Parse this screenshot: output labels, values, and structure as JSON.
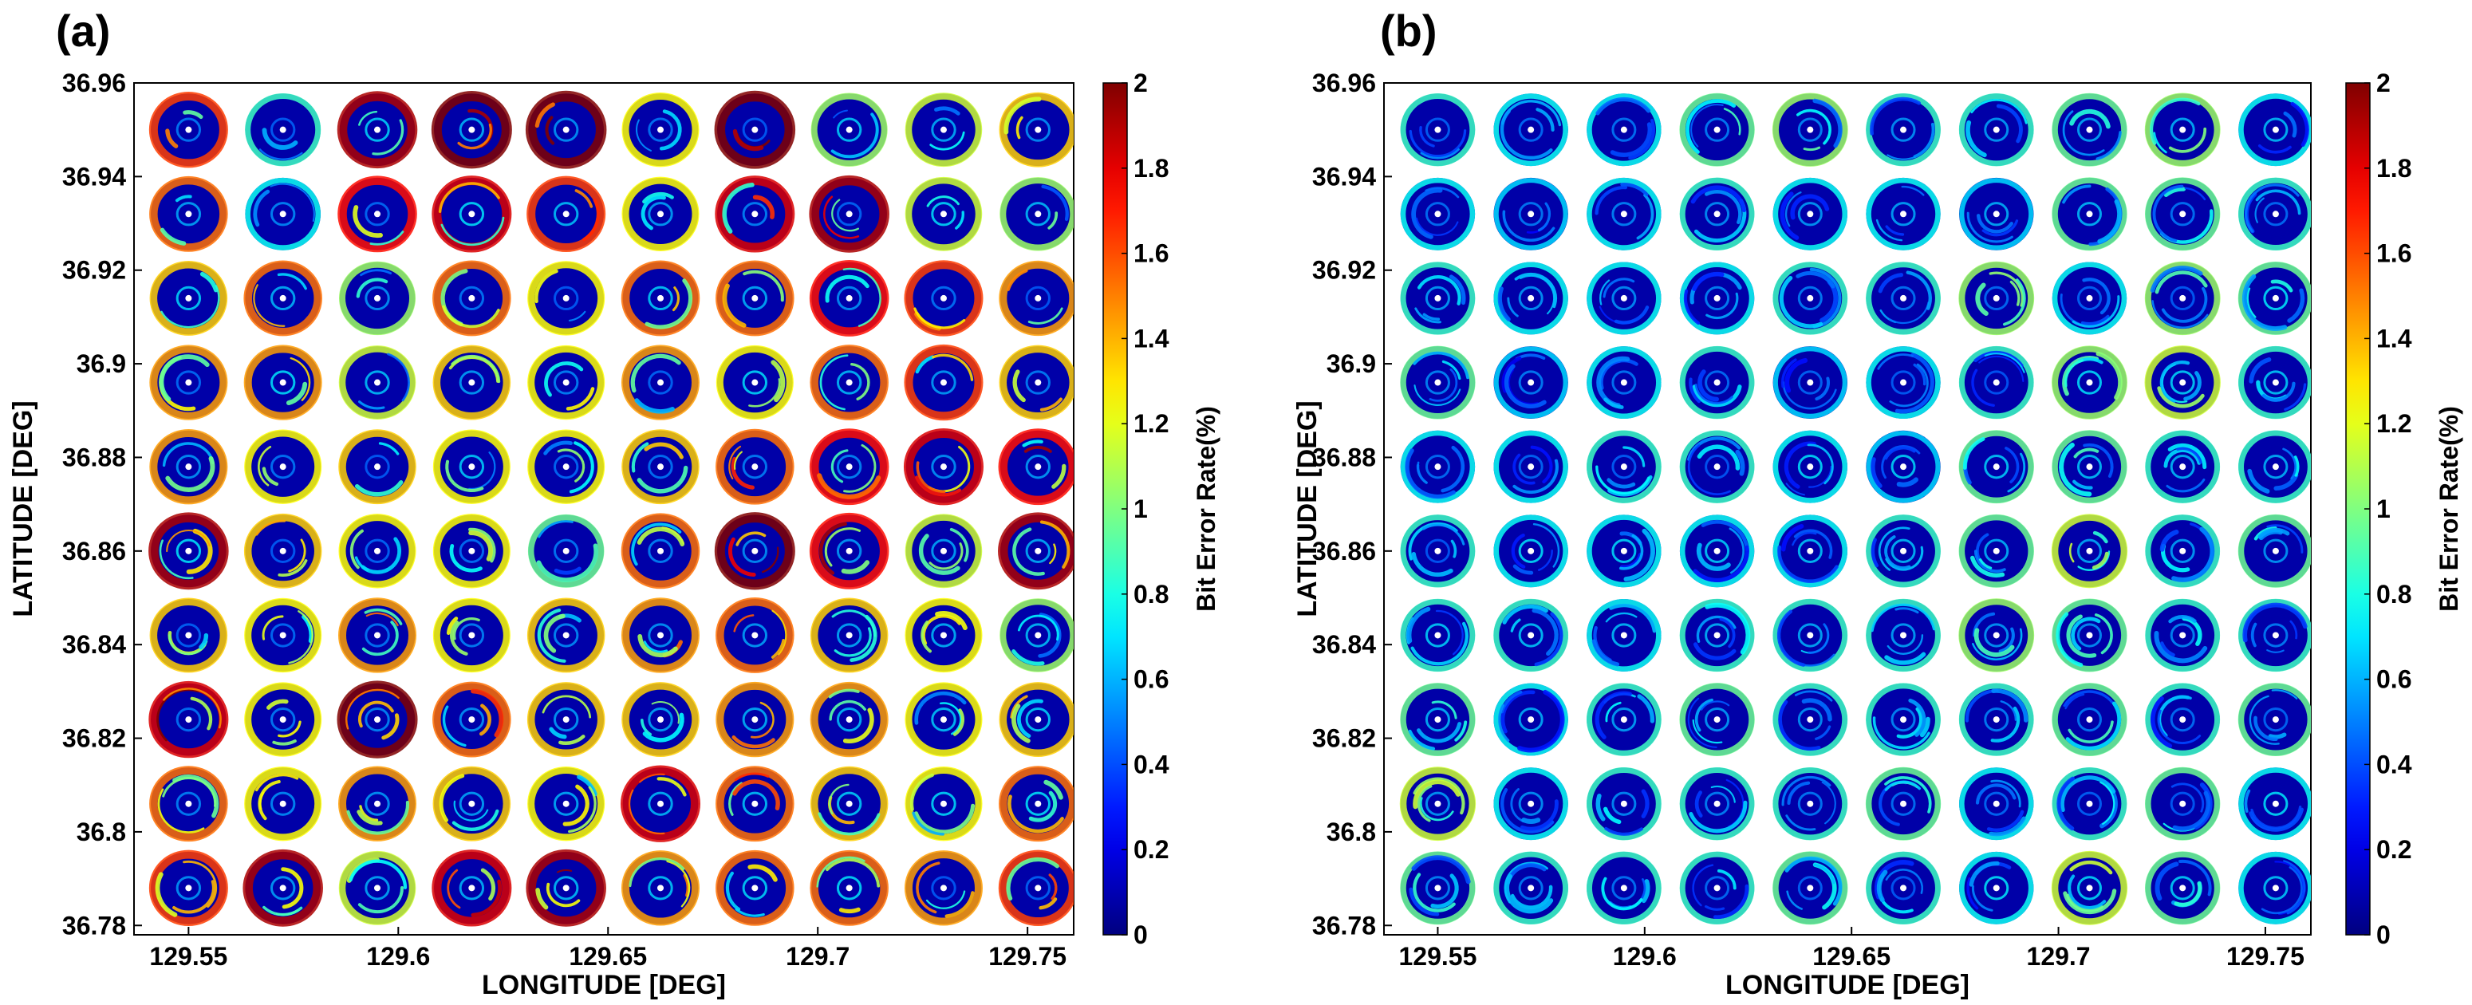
{
  "chart_data": [
    {
      "type": "heatmap",
      "panel_label": "(a)",
      "xlabel": "LONGITUDE [DEG]",
      "ylabel": "LATITUDE [DEG]",
      "xlim": [
        129.537,
        129.761
      ],
      "ylim": [
        36.778,
        36.96
      ],
      "xticks": [
        129.55,
        129.6,
        129.65,
        129.7,
        129.75
      ],
      "xtick_labels": [
        "129.55",
        "129.6",
        "129.65",
        "129.7",
        "129.75"
      ],
      "yticks": [
        36.78,
        36.8,
        36.82,
        36.84,
        36.86,
        36.88,
        36.9,
        36.92,
        36.94,
        36.96
      ],
      "ytick_labels": [
        "36.78",
        "36.8",
        "36.82",
        "36.84",
        "36.86",
        "36.88",
        "36.9",
        "36.92",
        "36.94",
        "36.96"
      ],
      "grid_longitudes": [
        129.55,
        129.5725,
        129.595,
        129.6175,
        129.64,
        129.6625,
        129.685,
        129.7075,
        129.73,
        129.7525
      ],
      "grid_latitudes": [
        36.95,
        36.932,
        36.914,
        36.896,
        36.878,
        36.86,
        36.842,
        36.824,
        36.806,
        36.788
      ],
      "cell_mean_ber_percent": [
        [
          1.4,
          0.6,
          1.7,
          1.8,
          1.9,
          1.0,
          1.9,
          0.8,
          0.9,
          1.1
        ],
        [
          1.3,
          0.5,
          1.5,
          1.6,
          1.4,
          1.0,
          1.6,
          1.7,
          0.9,
          0.8
        ],
        [
          1.1,
          1.3,
          0.8,
          1.3,
          1.0,
          1.3,
          1.3,
          1.5,
          1.4,
          1.2
        ],
        [
          1.2,
          1.2,
          0.9,
          1.1,
          1.0,
          1.2,
          1.0,
          1.3,
          1.4,
          1.1
        ],
        [
          1.2,
          1.0,
          1.1,
          1.0,
          1.0,
          1.1,
          1.3,
          1.5,
          1.6,
          1.5
        ],
        [
          1.7,
          1.1,
          1.0,
          1.0,
          0.7,
          1.3,
          1.8,
          1.5,
          0.9,
          1.7
        ],
        [
          1.1,
          1.0,
          1.2,
          1.0,
          1.1,
          1.2,
          1.3,
          1.1,
          1.0,
          0.8
        ],
        [
          1.6,
          1.0,
          1.8,
          1.3,
          1.1,
          1.1,
          1.2,
          1.2,
          1.0,
          1.1
        ],
        [
          1.3,
          1.0,
          1.2,
          1.1,
          1.0,
          1.6,
          1.3,
          1.1,
          1.0,
          1.3
        ],
        [
          1.4,
          1.7,
          0.9,
          1.6,
          1.7,
          1.2,
          1.3,
          1.3,
          1.2,
          1.4
        ]
      ],
      "colorbar": {
        "label": "Bit Error Rate(%)",
        "range": [
          0,
          2
        ],
        "ticks": [
          0,
          0.2,
          0.4,
          0.6,
          0.8,
          1,
          1.2,
          1.4,
          1.6,
          1.8,
          2
        ],
        "tick_labels": [
          "0",
          "0.2",
          "0.4",
          "0.6",
          "0.8",
          "1",
          "1.2",
          "1.4",
          "1.6",
          "1.8",
          "2"
        ],
        "colormap": "jet"
      }
    },
    {
      "type": "heatmap",
      "panel_label": "(b)",
      "xlabel": "LONGITUDE [DEG]",
      "ylabel": "LATITUDE [DEG]",
      "xlim": [
        129.537,
        129.761
      ],
      "ylim": [
        36.778,
        36.96
      ],
      "xticks": [
        129.55,
        129.6,
        129.65,
        129.7,
        129.75
      ],
      "xtick_labels": [
        "129.55",
        "129.6",
        "129.65",
        "129.7",
        "129.75"
      ],
      "yticks": [
        36.78,
        36.8,
        36.82,
        36.84,
        36.86,
        36.88,
        36.9,
        36.92,
        36.94,
        36.96
      ],
      "ytick_labels": [
        "36.78",
        "36.8",
        "36.82",
        "36.84",
        "36.86",
        "36.88",
        "36.9",
        "36.92",
        "36.94",
        "36.96"
      ],
      "grid_longitudes": [
        129.55,
        129.5725,
        129.595,
        129.6175,
        129.64,
        129.6625,
        129.685,
        129.7075,
        129.73,
        129.7525
      ],
      "grid_latitudes": [
        36.95,
        36.932,
        36.914,
        36.896,
        36.878,
        36.86,
        36.842,
        36.824,
        36.806,
        36.788
      ],
      "cell_mean_ber_percent": [
        [
          0.6,
          0.5,
          0.5,
          0.7,
          0.8,
          0.6,
          0.6,
          0.7,
          0.8,
          0.5
        ],
        [
          0.5,
          0.4,
          0.5,
          0.6,
          0.5,
          0.5,
          0.4,
          0.7,
          0.7,
          0.6
        ],
        [
          0.6,
          0.5,
          0.5,
          0.5,
          0.6,
          0.6,
          0.8,
          0.5,
          0.8,
          0.7
        ],
        [
          0.7,
          0.4,
          0.5,
          0.6,
          0.4,
          0.5,
          0.6,
          0.8,
          0.9,
          0.6
        ],
        [
          0.5,
          0.5,
          0.6,
          0.6,
          0.5,
          0.4,
          0.7,
          0.7,
          0.6,
          0.6
        ],
        [
          0.6,
          0.5,
          0.5,
          0.5,
          0.5,
          0.6,
          0.7,
          0.9,
          0.6,
          0.7
        ],
        [
          0.6,
          0.6,
          0.5,
          0.6,
          0.6,
          0.6,
          0.8,
          0.7,
          0.6,
          0.6
        ],
        [
          0.7,
          0.5,
          0.6,
          0.7,
          0.6,
          0.6,
          0.6,
          0.7,
          0.6,
          0.7
        ],
        [
          0.9,
          0.5,
          0.6,
          0.6,
          0.6,
          0.7,
          0.5,
          0.6,
          0.7,
          0.5
        ],
        [
          0.7,
          0.6,
          0.6,
          0.6,
          0.7,
          0.6,
          0.5,
          0.9,
          0.7,
          0.5
        ]
      ],
      "colorbar": {
        "label": "Bit Error Rate(%)",
        "range": [
          0,
          2
        ],
        "ticks": [
          0,
          0.2,
          0.4,
          0.6,
          0.8,
          1,
          1.2,
          1.4,
          1.6,
          1.8,
          2
        ],
        "tick_labels": [
          "0",
          "0.2",
          "0.4",
          "0.6",
          "0.8",
          "1",
          "1.2",
          "1.4",
          "1.6",
          "1.8",
          "2"
        ],
        "colormap": "jet"
      }
    }
  ]
}
